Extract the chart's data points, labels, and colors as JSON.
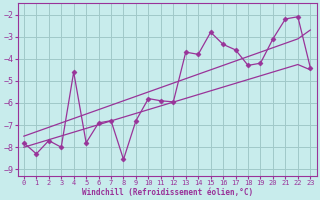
{
  "xlabel": "Windchill (Refroidissement éolien,°C)",
  "bg_color": "#c8ecec",
  "grid_color": "#a0c8c8",
  "line_color": "#993399",
  "xlim": [
    -0.5,
    23.5
  ],
  "ylim": [
    -9.3,
    -1.5
  ],
  "yticks": [
    -9,
    -8,
    -7,
    -6,
    -5,
    -4,
    -3,
    -2
  ],
  "xticks": [
    0,
    1,
    2,
    3,
    4,
    5,
    6,
    7,
    8,
    9,
    10,
    11,
    12,
    13,
    14,
    15,
    16,
    17,
    18,
    19,
    20,
    21,
    22,
    23
  ],
  "x": [
    0,
    1,
    2,
    3,
    4,
    5,
    6,
    7,
    8,
    9,
    10,
    11,
    12,
    13,
    14,
    15,
    16,
    17,
    18,
    19,
    20,
    21,
    22,
    23
  ],
  "y_main": [
    -7.8,
    -8.3,
    -7.7,
    -8.0,
    -4.6,
    -7.8,
    -6.9,
    -6.8,
    -8.55,
    -6.8,
    -5.8,
    -5.9,
    -5.95,
    -3.7,
    -3.8,
    -2.8,
    -3.35,
    -3.6,
    -4.3,
    -4.2,
    -3.1,
    -2.2,
    -2.1,
    -4.4
  ],
  "y_reg_low": [
    -8.0,
    -7.83,
    -7.66,
    -7.49,
    -7.32,
    -7.15,
    -6.98,
    -6.81,
    -6.64,
    -6.47,
    -6.3,
    -6.13,
    -5.96,
    -5.79,
    -5.62,
    -5.45,
    -5.28,
    -5.11,
    -4.94,
    -4.77,
    -4.6,
    -4.43,
    -4.26,
    -4.5
  ],
  "y_reg_high": [
    -7.5,
    -7.3,
    -7.1,
    -6.9,
    -6.7,
    -6.5,
    -6.3,
    -6.1,
    -5.9,
    -5.7,
    -5.5,
    -5.3,
    -5.1,
    -4.9,
    -4.7,
    -4.5,
    -4.3,
    -4.1,
    -3.9,
    -3.7,
    -3.5,
    -3.3,
    -3.1,
    -2.7
  ]
}
